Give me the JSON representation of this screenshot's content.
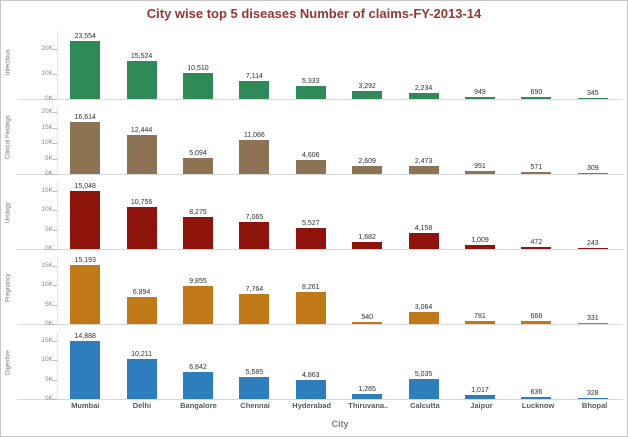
{
  "chart_data": {
    "type": "bar",
    "title": "City wise top 5 diseases Number of claims-FY-2013-14",
    "xlabel": "City",
    "legend_position": "none",
    "grid": false,
    "panel_layout": "stacked-row-small-multiples",
    "title_color": "#953735",
    "categories": [
      "Mumbai",
      "Delhi",
      "Bangalore",
      "Chennai",
      "Hyderabad",
      "Thiruvana..",
      "Calcutta",
      "Jaipur",
      "Lucknow",
      "Bhopal"
    ],
    "series": [
      {
        "name": "Infectious",
        "color": "#2e8b57",
        "ylim": [
          0,
          25000
        ],
        "ticks": [
          {
            "v": 0,
            "label": "0K"
          },
          {
            "v": 10000,
            "label": "10K"
          },
          {
            "v": 20000,
            "label": "20K"
          }
        ],
        "values": [
          23554,
          15524,
          10510,
          7114,
          5333,
          3292,
          2234,
          949,
          690,
          345
        ]
      },
      {
        "name": "Clinical Findings",
        "color": "#8c7353",
        "ylim": [
          0,
          20000
        ],
        "ticks": [
          {
            "v": 0,
            "label": "0K"
          },
          {
            "v": 5000,
            "label": "5K"
          },
          {
            "v": 10000,
            "label": "10K"
          },
          {
            "v": 15000,
            "label": "15K"
          },
          {
            "v": 20000,
            "label": "20K"
          }
        ],
        "values": [
          16614,
          12444,
          5094,
          11066,
          4606,
          2609,
          2473,
          951,
          571,
          309
        ]
      },
      {
        "name": "Urology",
        "color": "#8e130b",
        "ylim": [
          0,
          16000
        ],
        "ticks": [
          {
            "v": 0,
            "label": "0K"
          },
          {
            "v": 5000,
            "label": "5K"
          },
          {
            "v": 10000,
            "label": "10K"
          },
          {
            "v": 15000,
            "label": "15K"
          }
        ],
        "values": [
          15048,
          10756,
          8275,
          7065,
          5527,
          1682,
          4158,
          1009,
          472,
          243
        ]
      },
      {
        "name": "Pregnancy",
        "color": "#c17817",
        "ylim": [
          0,
          16000
        ],
        "ticks": [
          {
            "v": 0,
            "label": "0K"
          },
          {
            "v": 5000,
            "label": "5K"
          },
          {
            "v": 10000,
            "label": "10K"
          },
          {
            "v": 15000,
            "label": "15K"
          }
        ],
        "values": [
          15193,
          6894,
          9855,
          7764,
          8261,
          540,
          3064,
          781,
          668,
          331
        ]
      },
      {
        "name": "Digestive",
        "color": "#2e7dbd",
        "ylim": [
          0,
          16000
        ],
        "ticks": [
          {
            "v": 0,
            "label": "0K"
          },
          {
            "v": 5000,
            "label": "5K"
          },
          {
            "v": 10000,
            "label": "10K"
          },
          {
            "v": 15000,
            "label": "15K"
          }
        ],
        "values": [
          14888,
          10211,
          6842,
          5585,
          4863,
          1265,
          5035,
          1017,
          636,
          328
        ]
      }
    ]
  }
}
